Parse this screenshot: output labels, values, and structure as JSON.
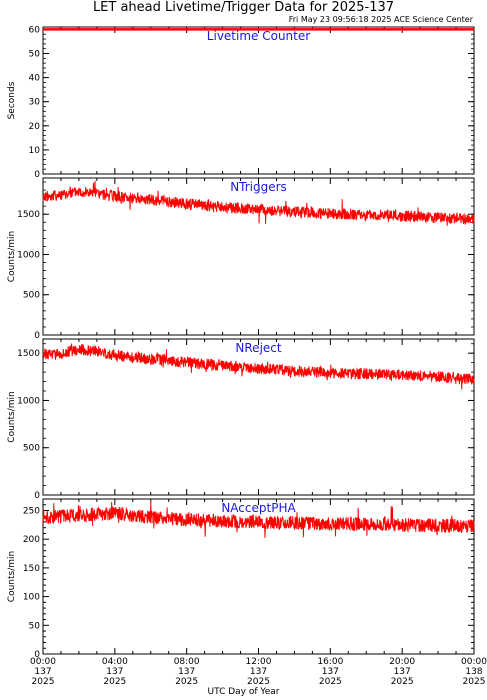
{
  "header": {
    "title": "LET ahead Livetime/Trigger Data for 2025-137",
    "timestamp": "Fri May 23 09:56:18 2025 ACE Science Center"
  },
  "x_axis_label": "UTC Day of Year",
  "colors": {
    "series": "#ff0000",
    "panel_title": "#1a1adc",
    "axes": "#000000"
  },
  "chart_data": [
    {
      "type": "line",
      "title": "Livetime Counter",
      "ylabel": "Seconds",
      "ylim": [
        0,
        61
      ],
      "yticks": [
        0,
        10,
        20,
        30,
        40,
        50,
        60
      ],
      "series": [
        {
          "x_hours": [
            0,
            24
          ],
          "values": [
            60,
            60
          ]
        }
      ]
    },
    {
      "type": "line",
      "title": "NTriggers",
      "ylabel": "Counts/min",
      "ylim": [
        0,
        1950
      ],
      "yticks": [
        0,
        500,
        1000,
        1500
      ],
      "series": [
        {
          "x_hours": [
            0,
            1,
            2,
            3,
            4,
            6,
            8,
            10,
            12,
            14,
            16,
            18,
            20,
            22,
            24
          ],
          "values": [
            1720,
            1740,
            1790,
            1760,
            1720,
            1680,
            1630,
            1590,
            1560,
            1530,
            1510,
            1490,
            1480,
            1460,
            1440
          ]
        }
      ]
    },
    {
      "type": "line",
      "title": "NReject",
      "ylabel": "Counts/min",
      "ylim": [
        0,
        1650
      ],
      "yticks": [
        0,
        500,
        1000,
        1500
      ],
      "series": [
        {
          "x_hours": [
            0,
            1,
            2,
            3,
            4,
            6,
            8,
            10,
            12,
            14,
            16,
            18,
            20,
            22,
            24
          ],
          "values": [
            1490,
            1500,
            1540,
            1520,
            1480,
            1440,
            1400,
            1370,
            1340,
            1310,
            1290,
            1280,
            1270,
            1250,
            1220
          ]
        }
      ]
    },
    {
      "type": "line",
      "title": "NAcceptPHA",
      "ylabel": "Counts/min",
      "ylim": [
        0,
        270
      ],
      "yticks": [
        0,
        10,
        20,
        30,
        40,
        50,
        60,
        70,
        80,
        90,
        100,
        110,
        120,
        130,
        140,
        150,
        160,
        170,
        180,
        190,
        200,
        210,
        220,
        230,
        240,
        250,
        260,
        270
      ],
      "yticks_labeled": [
        0,
        50,
        100,
        150,
        200,
        250
      ],
      "series": [
        {
          "x_hours": [
            0,
            2,
            4,
            6,
            8,
            10,
            12,
            14,
            16,
            18,
            20,
            22,
            24
          ],
          "values": [
            238,
            242,
            245,
            238,
            234,
            232,
            230,
            228,
            227,
            226,
            225,
            224,
            222
          ]
        }
      ]
    }
  ],
  "x_ticks": [
    {
      "time": "00:00",
      "doy": "137",
      "year": "2025",
      "hour": 0
    },
    {
      "time": "04:00",
      "doy": "137",
      "year": "2025",
      "hour": 4
    },
    {
      "time": "08:00",
      "doy": "137",
      "year": "2025",
      "hour": 8
    },
    {
      "time": "12:00",
      "doy": "137",
      "year": "2025",
      "hour": 12
    },
    {
      "time": "16:00",
      "doy": "137",
      "year": "2025",
      "hour": 16
    },
    {
      "time": "20:00",
      "doy": "137",
      "year": "2025",
      "hour": 20
    },
    {
      "time": "00:00",
      "doy": "138",
      "year": "2025",
      "hour": 24
    }
  ]
}
